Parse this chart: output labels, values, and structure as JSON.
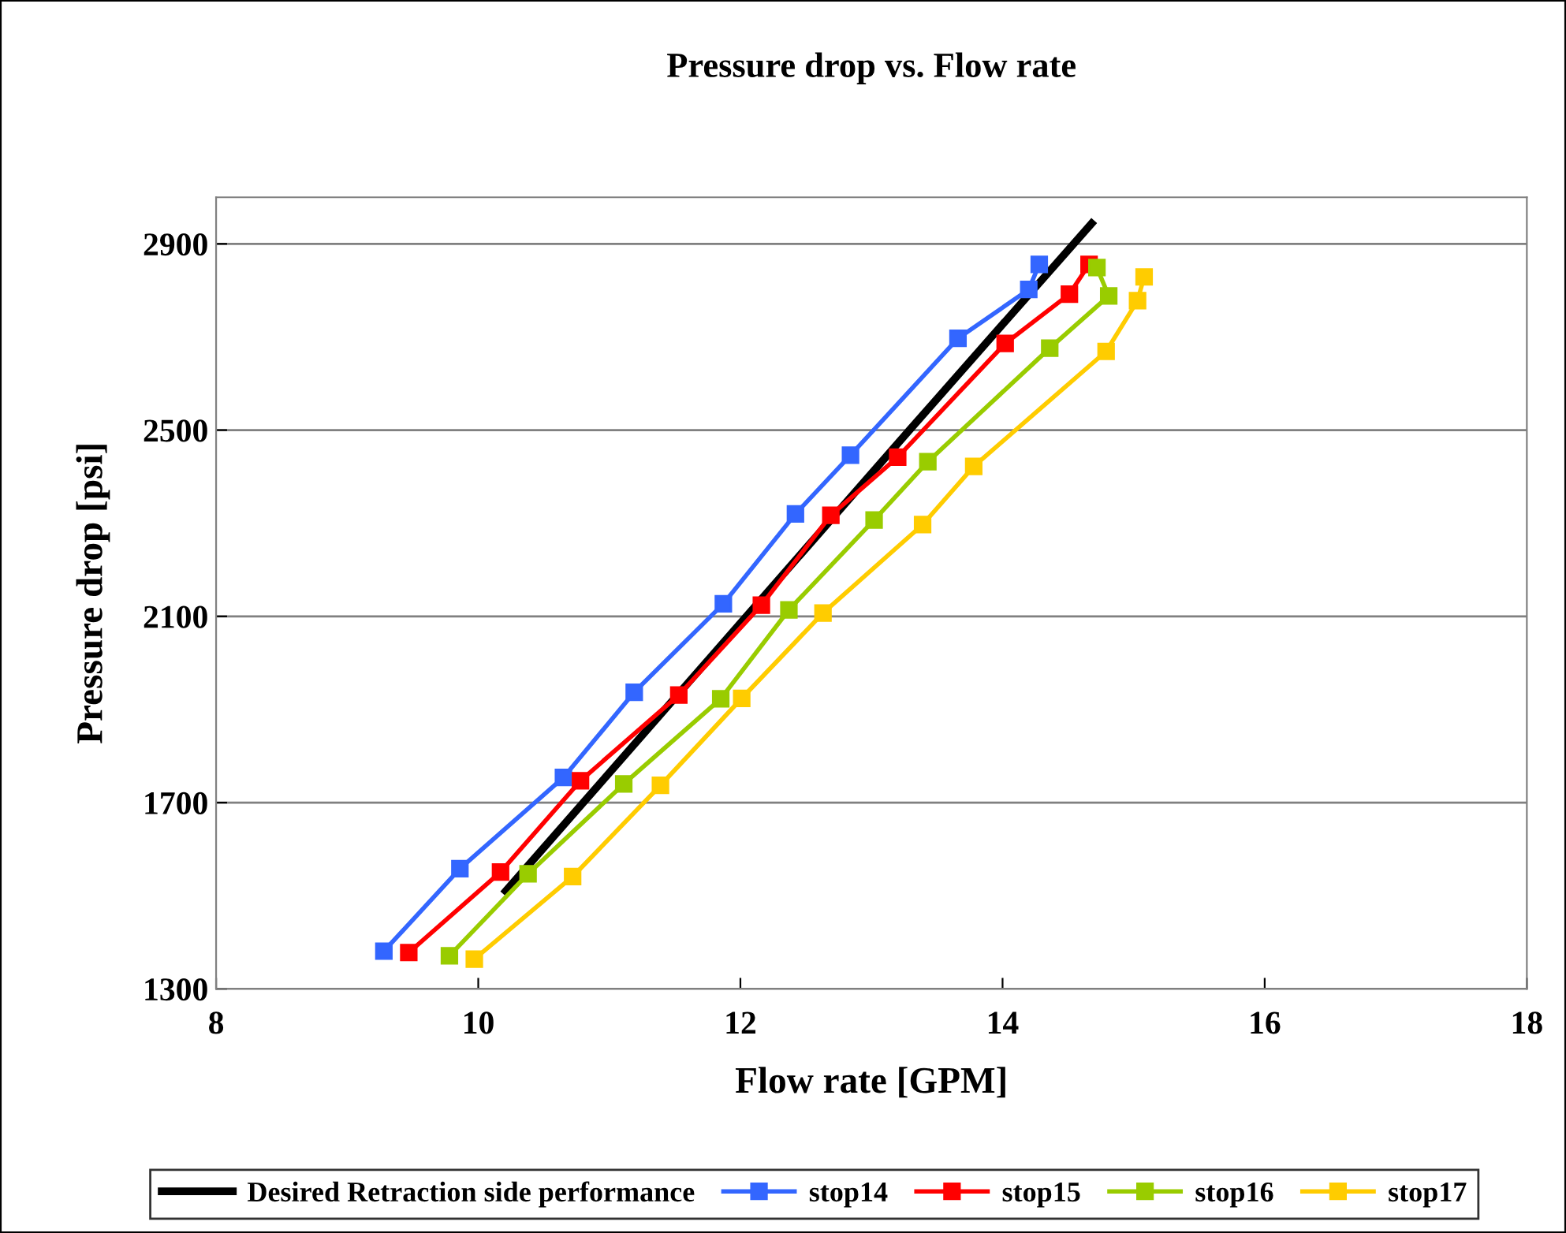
{
  "chart_data": {
    "type": "line",
    "title": "Pressure drop vs. Flow rate",
    "xlabel": "Flow rate [GPM]",
    "ylabel": "Pressure drop [psi]",
    "xlim": [
      8,
      18
    ],
    "xticks": [
      8,
      10,
      12,
      14,
      16,
      18
    ],
    "ylim": [
      1300,
      3000
    ],
    "yticks": [
      1300,
      1700,
      2100,
      2500,
      2900
    ],
    "grid": "y",
    "legend": "bottom",
    "line_style": "solid",
    "series": [
      {
        "name": "Desired Retraction side performance",
        "color": "#000000",
        "marker": "none",
        "x": [
          10.21,
          13.29,
          14.68
        ],
        "values": [
          1510,
          2500,
          2944
        ]
      },
      {
        "name": "stop14",
        "color": "#3366ff",
        "marker": "square",
        "x": [
          9.28,
          9.86,
          10.65,
          11.19,
          11.87,
          12.42,
          12.84,
          13.66,
          14.2,
          14.28
        ],
        "values": [
          1381,
          1558,
          1754,
          1937,
          2127,
          2320,
          2446,
          2697,
          2802,
          2856
        ]
      },
      {
        "name": "stop15",
        "color": "#ff0000",
        "marker": "square",
        "x": [
          9.47,
          10.17,
          10.78,
          11.53,
          12.16,
          12.69,
          13.2,
          14.02,
          14.51,
          14.66
        ],
        "values": [
          1378,
          1551,
          1747,
          1931,
          2124,
          2317,
          2442,
          2686,
          2792,
          2856
        ]
      },
      {
        "name": "stop16",
        "color": "#99cc00",
        "marker": "square",
        "x": [
          9.78,
          10.38,
          11.11,
          11.85,
          12.37,
          13.02,
          13.43,
          14.36,
          14.81,
          14.72
        ],
        "values": [
          1371,
          1547,
          1740,
          1923,
          2114,
          2307,
          2432,
          2676,
          2788,
          2849
        ]
      },
      {
        "name": "stop17",
        "color": "#ffcc00",
        "marker": "square",
        "x": [
          9.97,
          10.72,
          11.39,
          12.01,
          12.63,
          13.39,
          13.78,
          14.79,
          15.03,
          15.08
        ],
        "values": [
          1364,
          1541,
          1737,
          1924,
          2107,
          2297,
          2422,
          2669,
          2778,
          2829
        ]
      }
    ]
  }
}
